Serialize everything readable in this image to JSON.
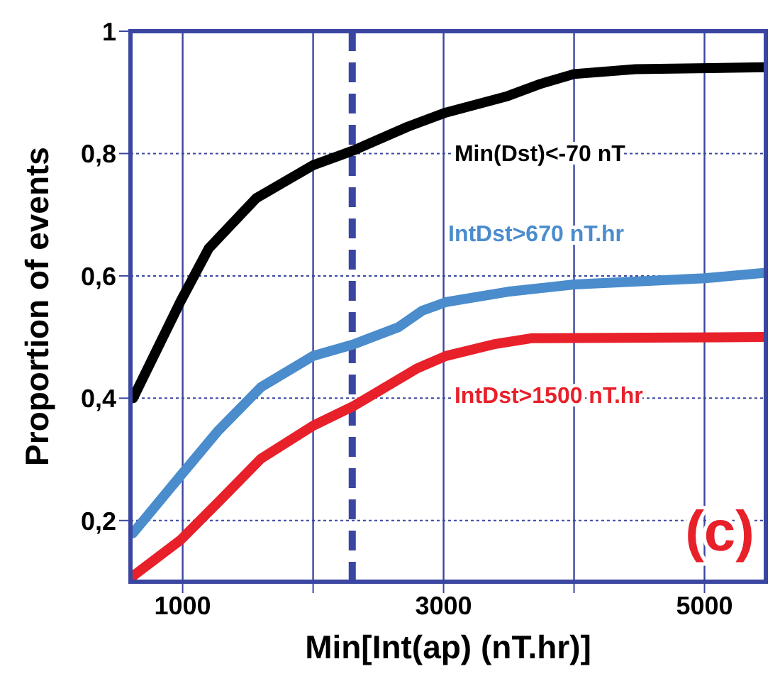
{
  "chart_data": {
    "type": "line",
    "xlabel": "Min[Int(ap) (nT.hr)]",
    "ylabel": "Proportion of events",
    "xlim": [
      600,
      5470
    ],
    "xticks": [
      1000,
      {
        "value": 2000,
        "label": null
      },
      3000,
      {
        "value": 4000,
        "label": null
      },
      5000
    ],
    "ylim": [
      0.1,
      1
    ],
    "yticks": [
      {
        "value": 0.2,
        "label": "0,2"
      },
      {
        "value": 0.4,
        "label": "0,4"
      },
      {
        "value": 0.6,
        "label": "0,6"
      },
      {
        "value": 0.8,
        "label": "0,8"
      },
      1
    ],
    "grid": true,
    "marker": "none",
    "line_style": "solid",
    "series": [
      {
        "name": "Min(Dst)<-70 nT",
        "color": "#000000",
        "x": [
          620,
          983,
          1200,
          1564,
          2000,
          2309,
          2727,
          3017,
          3491,
          3745,
          4000,
          4472,
          5470
        ],
        "values": [
          0.4,
          0.558,
          0.645,
          0.727,
          0.781,
          0.805,
          0.844,
          0.867,
          0.894,
          0.914,
          0.93,
          0.938,
          0.941
        ]
      },
      {
        "name": "IntDst>670 nT.hr",
        "color": "#4a8ccc",
        "x": [
          618,
          983,
          1273,
          1600,
          2000,
          2309,
          2654,
          2836,
          3017,
          3491,
          4000,
          5000,
          5470
        ],
        "values": [
          0.179,
          0.273,
          0.347,
          0.418,
          0.469,
          0.488,
          0.516,
          0.543,
          0.557,
          0.574,
          0.586,
          0.596,
          0.605
        ]
      },
      {
        "name": "IntDst>1500 nT.hr",
        "color": "#e8202a",
        "x": [
          618,
          983,
          1273,
          1600,
          2000,
          2309,
          2800,
          3017,
          3382,
          3672,
          5470
        ],
        "values": [
          0.109,
          0.168,
          0.23,
          0.301,
          0.355,
          0.387,
          0.449,
          0.469,
          0.488,
          0.498,
          0.5
        ]
      }
    ],
    "ref_lines": [
      {
        "axis": "x",
        "value": 2300,
        "color": "#3a46a0",
        "line_style": "dashed"
      }
    ],
    "annotations": [
      "(c)"
    ]
  }
}
